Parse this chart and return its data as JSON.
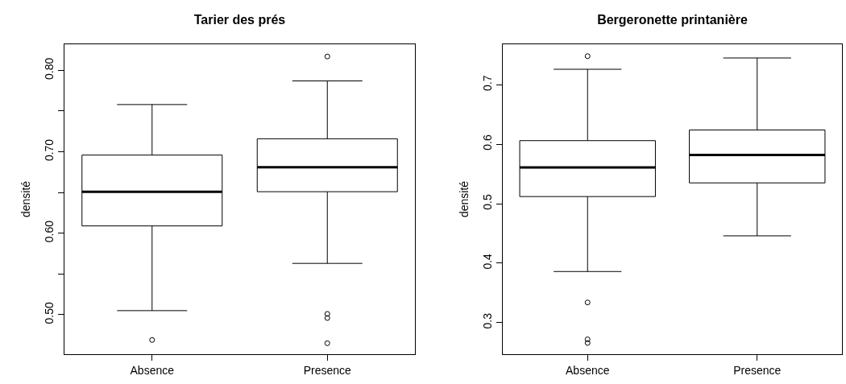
{
  "chart_data": [
    {
      "type": "box",
      "title": "Tarier des prés",
      "ylabel": "densité",
      "categories": [
        "Absence",
        "Presence"
      ],
      "ylim": [
        0.4515,
        0.832
      ],
      "yticks": [
        {
          "value": 0.5,
          "label": "0.50"
        },
        {
          "value": 0.55,
          "label": null
        },
        {
          "value": 0.6,
          "label": "0.60"
        },
        {
          "value": 0.65,
          "label": null
        },
        {
          "value": 0.7,
          "label": "0.70"
        },
        {
          "value": 0.75,
          "label": null
        },
        {
          "value": 0.8,
          "label": "0.80"
        }
      ],
      "boxes": [
        {
          "low": 0.505,
          "q1": 0.609,
          "median": 0.651,
          "q3": 0.696,
          "high": 0.758,
          "outliers": [
            0.469
          ]
        },
        {
          "low": 0.563,
          "q1": 0.651,
          "median": 0.681,
          "q3": 0.716,
          "high": 0.787,
          "outliers": [
            0.817,
            0.501,
            0.496,
            0.465
          ]
        }
      ]
    },
    {
      "type": "box",
      "title": "Bergeronette printanière",
      "ylabel": "densité",
      "categories": [
        "Absence",
        "Presence"
      ],
      "ylim": [
        0.247,
        0.768
      ],
      "yticks": [
        0.3,
        0.4,
        0.5,
        0.6,
        0.7
      ],
      "boxes": [
        {
          "low": 0.386,
          "q1": 0.512,
          "median": 0.561,
          "q3": 0.606,
          "high": 0.726,
          "outliers": [
            0.748,
            0.334,
            0.272,
            0.266
          ]
        },
        {
          "low": 0.446,
          "q1": 0.535,
          "median": 0.582,
          "q3": 0.624,
          "high": 0.745
        }
      ]
    }
  ]
}
